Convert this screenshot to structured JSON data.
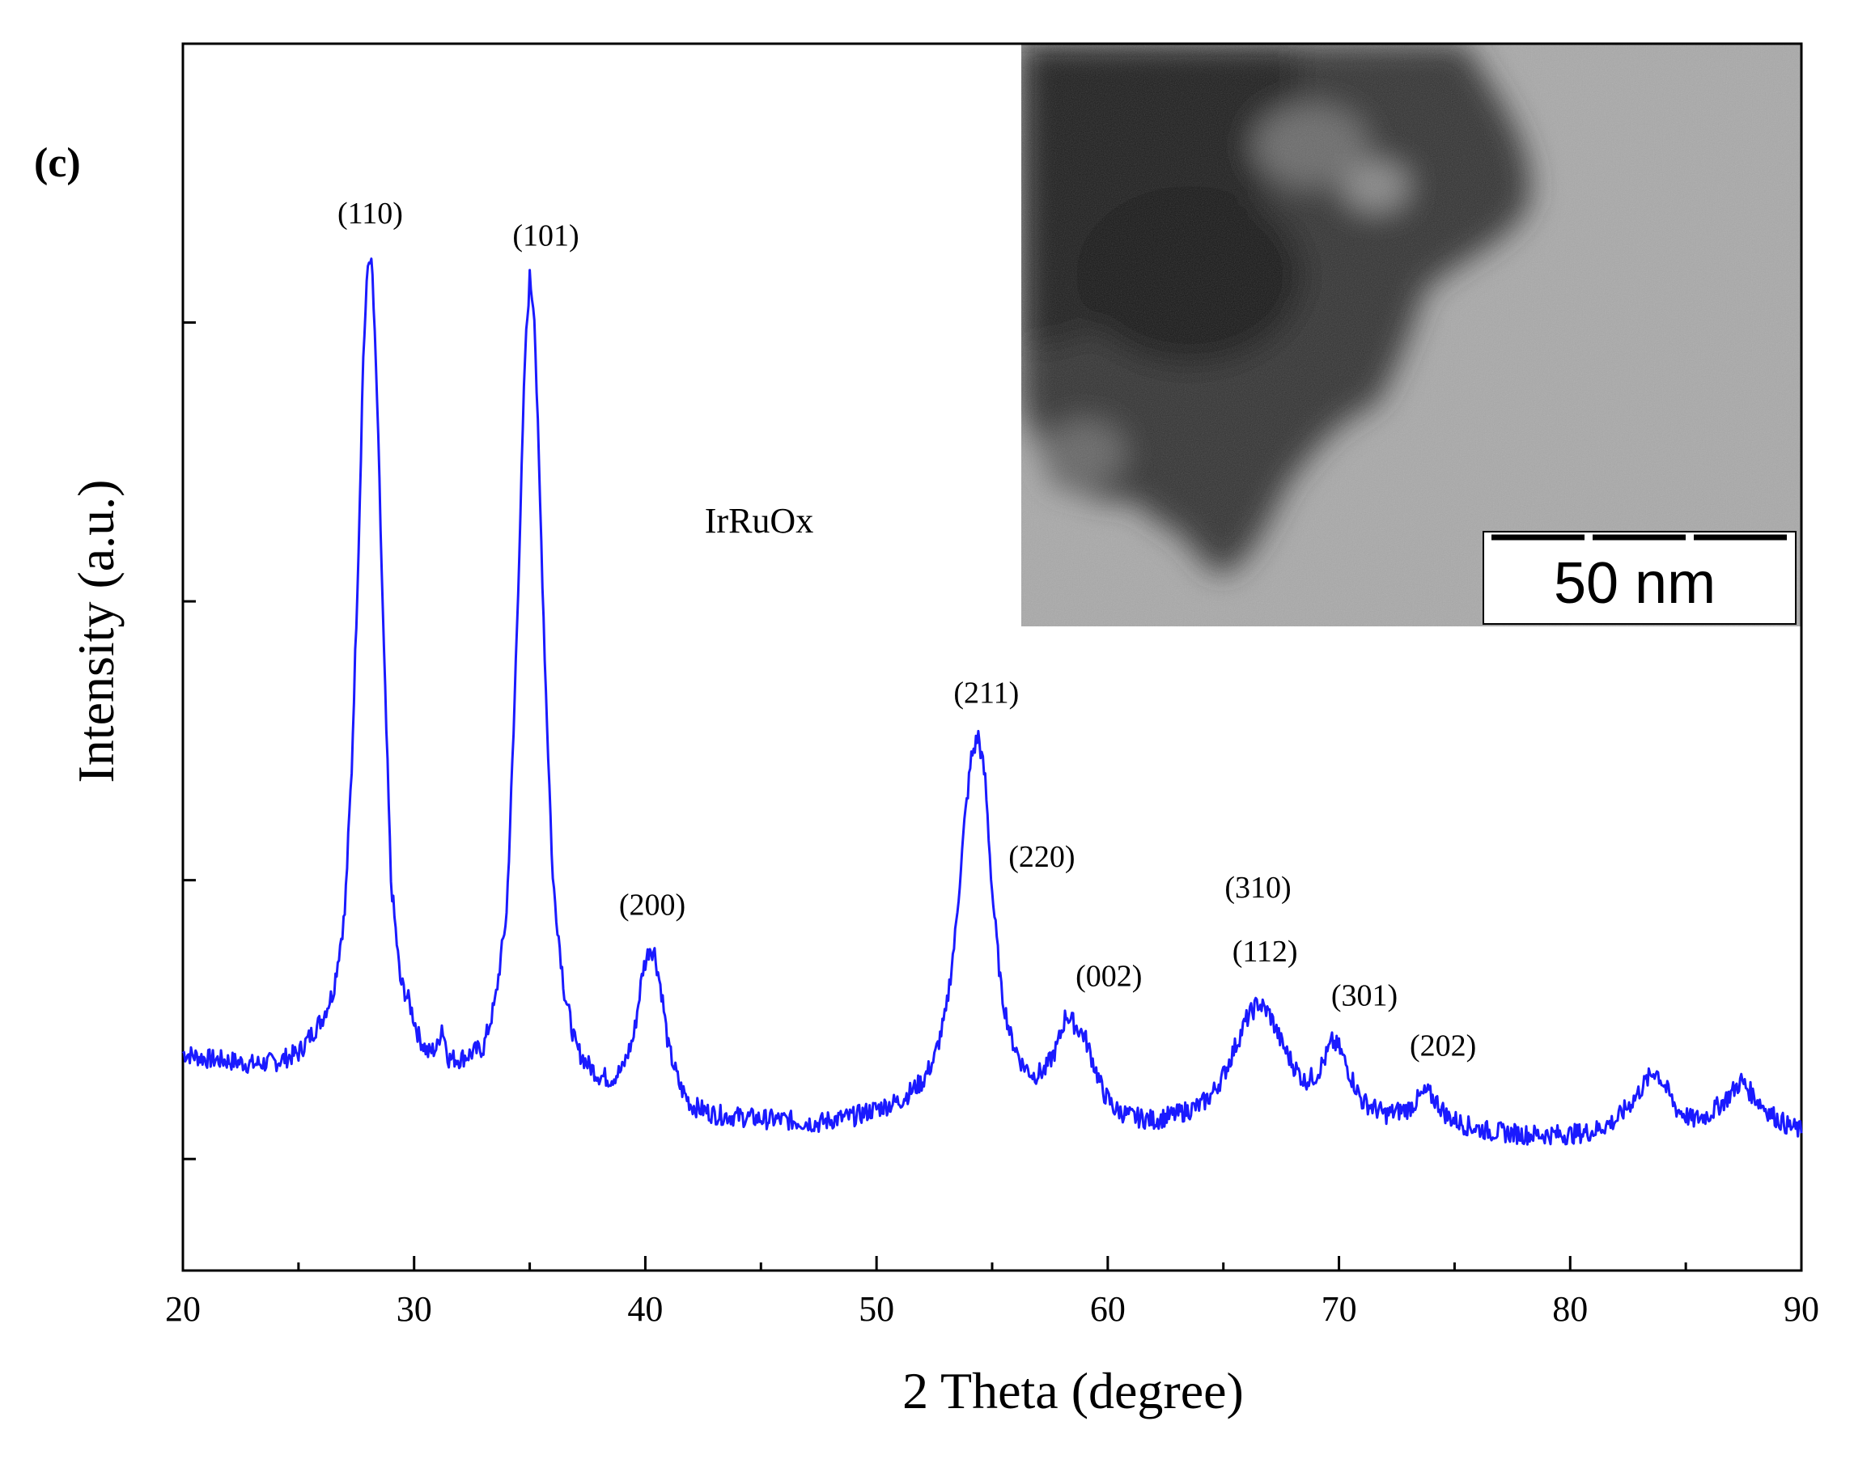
{
  "panel_label": "(c)",
  "chart_data": {
    "type": "line",
    "title": "",
    "xlabel": "2 Theta  (degree)",
    "ylabel": "Intensity  (a.u.)",
    "xlim": [
      20,
      90
    ],
    "ylim": [
      -0.1,
      1.0
    ],
    "xticks": [
      20,
      30,
      40,
      50,
      60,
      70,
      80,
      90
    ],
    "yticks": [
      0.0,
      0.25,
      0.5,
      0.75,
      1.0
    ],
    "grid": false,
    "legend": "none",
    "series_color": "#1a1aff",
    "sample_label": "IrRuOx",
    "peaks": [
      {
        "label": "(110)",
        "x": 28.1,
        "y": 0.81
      },
      {
        "label": "(101)",
        "x": 35.0,
        "y": 0.79
      },
      {
        "label": "(200)",
        "x": 40.3,
        "y": 0.19
      },
      {
        "label": "(211)",
        "x": 54.4,
        "y": 0.38
      },
      {
        "label": "(220)",
        "x": 58.2,
        "y": 0.135
      },
      {
        "label": "(002)",
        "x": 59.0,
        "y": 0.115
      },
      {
        "label": "(310)",
        "x": 66.5,
        "y": 0.14
      },
      {
        "label": "(112)",
        "x": 66.8,
        "y": 0.13
      },
      {
        "label": "(301)",
        "x": 69.7,
        "y": 0.105
      },
      {
        "label": "(202)",
        "x": 73.8,
        "y": 0.06
      },
      {
        "label": "",
        "x": 83.7,
        "y": 0.08
      },
      {
        "label": "",
        "x": 87.4,
        "y": 0.07
      }
    ],
    "series": [
      {
        "x": [
          20,
          21,
          22,
          23,
          24,
          25,
          25.5,
          26,
          26.5,
          27,
          27.3,
          27.6,
          27.8,
          28.0,
          28.1,
          28.2,
          28.4,
          28.7,
          29.0,
          29.4,
          29.8,
          30.2,
          30.6,
          31.0,
          31.2,
          31.5,
          32,
          32.5,
          33,
          33.5,
          34,
          34.3,
          34.6,
          34.8,
          35.0,
          35.2,
          35.4,
          35.7,
          36.0,
          36.5,
          37,
          37.5,
          38,
          38.5,
          39,
          39.5,
          39.9,
          40.2,
          40.4,
          40.7,
          41.0,
          41.5,
          42,
          43,
          44,
          45,
          46,
          47,
          47.5,
          48,
          49,
          50,
          51,
          52,
          52.5,
          53,
          53.4,
          53.8,
          54.1,
          54.4,
          54.7,
          55.0,
          55.4,
          55.8,
          56.3,
          56.8,
          57.3,
          57.8,
          58.2,
          58.6,
          59.0,
          59.4,
          59.8,
          60.3,
          61,
          62,
          63,
          64,
          64.5,
          65,
          65.5,
          66.0,
          66.5,
          67.0,
          67.5,
          68.0,
          68.5,
          69.0,
          69.4,
          69.7,
          70.0,
          70.5,
          71,
          72,
          73,
          73.5,
          73.8,
          74.2,
          74.7,
          75.5,
          76.5,
          78,
          80,
          81,
          82,
          82.8,
          83.3,
          83.7,
          84.1,
          84.6,
          85.3,
          86,
          86.8,
          87.4,
          88.0,
          88.7,
          89.4,
          90
        ],
        "y": [
          0.095,
          0.09,
          0.088,
          0.085,
          0.087,
          0.095,
          0.11,
          0.125,
          0.15,
          0.22,
          0.35,
          0.55,
          0.72,
          0.8,
          0.81,
          0.79,
          0.68,
          0.45,
          0.25,
          0.16,
          0.14,
          0.11,
          0.095,
          0.1,
          0.12,
          0.09,
          0.09,
          0.095,
          0.1,
          0.14,
          0.22,
          0.38,
          0.58,
          0.72,
          0.79,
          0.76,
          0.62,
          0.42,
          0.25,
          0.15,
          0.1,
          0.085,
          0.075,
          0.072,
          0.08,
          0.11,
          0.17,
          0.19,
          0.185,
          0.15,
          0.1,
          0.065,
          0.048,
          0.04,
          0.038,
          0.036,
          0.035,
          0.033,
          0.032,
          0.035,
          0.038,
          0.045,
          0.052,
          0.07,
          0.09,
          0.13,
          0.2,
          0.3,
          0.36,
          0.38,
          0.34,
          0.24,
          0.15,
          0.11,
          0.085,
          0.075,
          0.08,
          0.1,
          0.13,
          0.12,
          0.11,
          0.085,
          0.06,
          0.045,
          0.038,
          0.035,
          0.04,
          0.048,
          0.058,
          0.075,
          0.1,
          0.125,
          0.14,
          0.13,
          0.105,
          0.085,
          0.07,
          0.075,
          0.09,
          0.105,
          0.1,
          0.075,
          0.052,
          0.04,
          0.045,
          0.055,
          0.06,
          0.052,
          0.038,
          0.03,
          0.025,
          0.022,
          0.022,
          0.025,
          0.035,
          0.055,
          0.07,
          0.08,
          0.065,
          0.045,
          0.035,
          0.04,
          0.055,
          0.07,
          0.055,
          0.04,
          0.03,
          0.025
        ]
      }
    ],
    "scale_bar_label": "50 nm"
  }
}
